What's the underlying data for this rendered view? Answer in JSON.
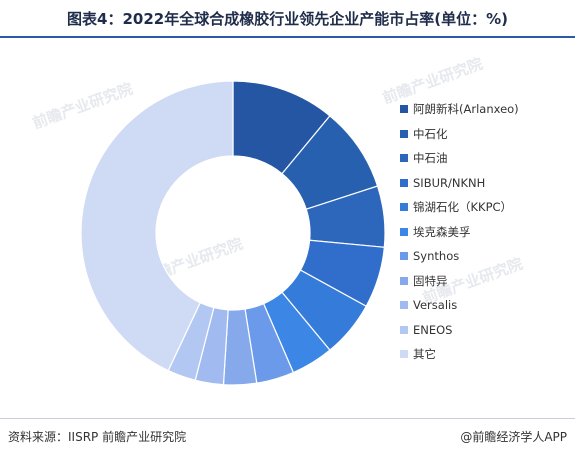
{
  "title": "图表4：2022年全球合成橡胶行业领先企业产能市占率(单位：%)",
  "footer": {
    "source": "资料来源：IISRP 前瞻产业研究院",
    "brand": "@前瞻经济学人APP"
  },
  "watermark": "前瞻产业研究院",
  "colors": {
    "title_rule": "#2a5aa8"
  },
  "chart_data": {
    "type": "pie",
    "donut": true,
    "title": "",
    "legend_position": "right",
    "series": [
      {
        "name": "阿朗新科(Arlanxeo)",
        "value": 11,
        "color": "#2456a3"
      },
      {
        "name": "中石化",
        "value": 9,
        "color": "#2860b0"
      },
      {
        "name": "中石油",
        "value": 6.5,
        "color": "#2d67bc"
      },
      {
        "name": "SIBUR/NKNH",
        "value": 6.5,
        "color": "#316ecb"
      },
      {
        "name": "锦湖石化（KKPC）",
        "value": 6,
        "color": "#357bd9"
      },
      {
        "name": "埃克森美孚",
        "value": 4.5,
        "color": "#3c86e6"
      },
      {
        "name": "Synthos",
        "value": 4,
        "color": "#6b9aeb"
      },
      {
        "name": "固特异",
        "value": 3.5,
        "color": "#86a9ec"
      },
      {
        "name": "Versalis",
        "value": 3,
        "color": "#a1bbf0"
      },
      {
        "name": "ENEOS",
        "value": 3,
        "color": "#b2c7f2"
      },
      {
        "name": "其它",
        "value": 43,
        "color": "#cfdaf5"
      }
    ]
  }
}
